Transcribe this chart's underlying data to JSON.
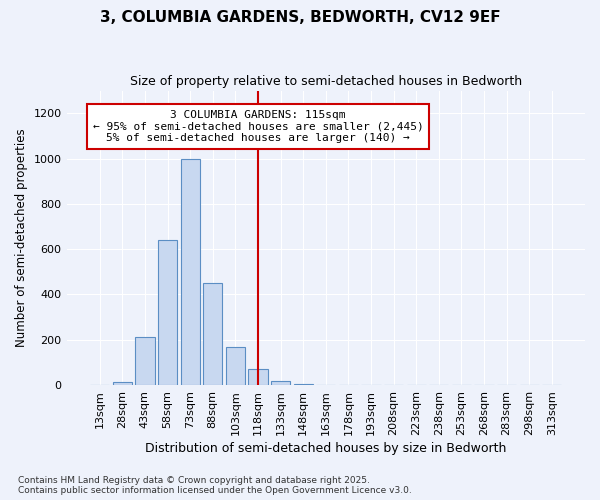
{
  "title1": "3, COLUMBIA GARDENS, BEDWORTH, CV12 9EF",
  "title2": "Size of property relative to semi-detached houses in Bedworth",
  "xlabel": "Distribution of semi-detached houses by size in Bedworth",
  "ylabel": "Number of semi-detached properties",
  "categories": [
    "13sqm",
    "28sqm",
    "43sqm",
    "58sqm",
    "73sqm",
    "88sqm",
    "103sqm",
    "118sqm",
    "133sqm",
    "148sqm",
    "163sqm",
    "178sqm",
    "193sqm",
    "208sqm",
    "223sqm",
    "238sqm",
    "253sqm",
    "268sqm",
    "283sqm",
    "298sqm",
    "313sqm"
  ],
  "bar_values": [
    0,
    15,
    210,
    640,
    1000,
    450,
    170,
    70,
    20,
    5,
    0,
    0,
    0,
    0,
    0,
    0,
    0,
    0,
    0,
    0,
    0
  ],
  "bar_color": "#c8d8f0",
  "bar_edge_color": "#5b8ec4",
  "annotation_title": "3 COLUMBIA GARDENS: 115sqm",
  "annotation_line1": "← 95% of semi-detached houses are smaller (2,445)",
  "annotation_line2": "5% of semi-detached houses are larger (140) →",
  "vline_x": 7,
  "vline_color": "#cc0000",
  "annotation_box_color": "#ffffff",
  "annotation_box_edge": "#cc0000",
  "ylim": [
    0,
    1300
  ],
  "yticks": [
    0,
    200,
    400,
    600,
    800,
    1000,
    1200
  ],
  "footnote1": "Contains HM Land Registry data © Crown copyright and database right 2025.",
  "footnote2": "Contains public sector information licensed under the Open Government Licence v3.0.",
  "bg_color": "#eef2fb"
}
